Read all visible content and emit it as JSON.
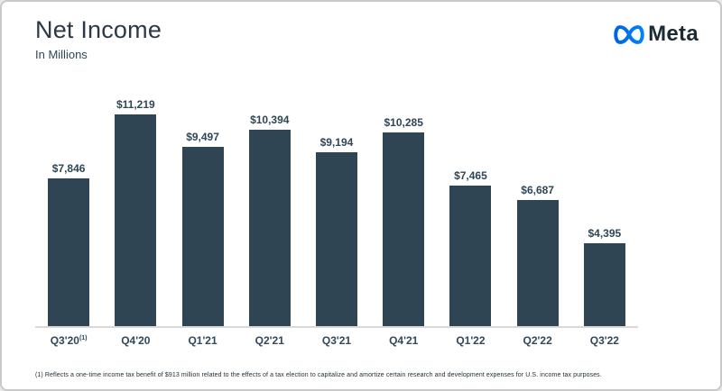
{
  "header": {
    "title": "Net Income",
    "subtitle": "In Millions"
  },
  "logo": {
    "brand": "Meta",
    "infinity_color_start": "#0064E0",
    "infinity_color_end": "#0082FB",
    "wordmark_color": "#1C2B33"
  },
  "chart_data": {
    "type": "bar",
    "categories": [
      "Q3'20",
      "Q4'20",
      "Q1'21",
      "Q2'21",
      "Q3'21",
      "Q4'21",
      "Q1'22",
      "Q2'22",
      "Q3'22"
    ],
    "values": [
      7846,
      11219,
      9497,
      10394,
      9194,
      10285,
      7465,
      6687,
      4395
    ],
    "labels": [
      "$7,846",
      "$11,219",
      "$9,497",
      "$10,394",
      "$9,194",
      "$10,285",
      "$7,465",
      "$6,687",
      "$4,395"
    ],
    "first_category_superscript": "(1)",
    "title": "Net Income",
    "subtitle": "In Millions",
    "xlabel": "",
    "ylabel": "",
    "ylim": [
      0,
      11219
    ],
    "grid": false,
    "legend": false,
    "bar_color": "#304554",
    "axis_line_color": "#D9D9D9"
  },
  "footnote": "(1) Reflects a one-time income tax benefit of $913 million related to the effects of a tax election to capitalize and amortize certain research and development expenses for U.S. income tax purposes."
}
